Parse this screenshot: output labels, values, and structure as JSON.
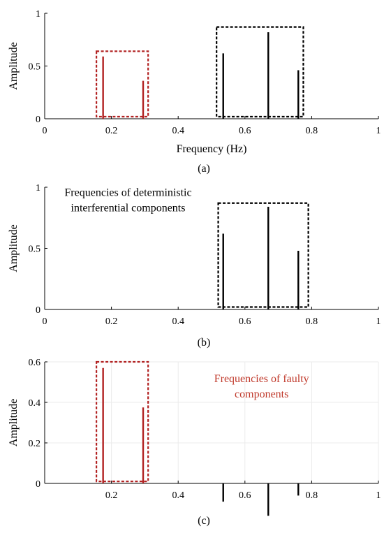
{
  "chart_data": [
    {
      "type": "stem",
      "panel_label": "(a)",
      "xlabel": "Frequency (Hz)",
      "ylabel": "Amplitude",
      "xlim": [
        0,
        1
      ],
      "ylim": [
        0,
        1
      ],
      "xticks": [
        0,
        0.2,
        0.4,
        0.6,
        0.8,
        1
      ],
      "xtick_labels": [
        "0",
        "0.2",
        "0.4",
        "0.6",
        "0.8",
        "1"
      ],
      "yticks": [
        0,
        0.5,
        1
      ],
      "ytick_labels": [
        "0",
        "0.5",
        "1"
      ],
      "grid": false,
      "stems": [
        {
          "x": 0.175,
          "y": 0.59,
          "color": "#b22222"
        },
        {
          "x": 0.295,
          "y": 0.36,
          "color": "#b22222"
        },
        {
          "x": 0.535,
          "y": 0.62,
          "color": "#000000"
        },
        {
          "x": 0.67,
          "y": 0.82,
          "color": "#000000"
        },
        {
          "x": 0.76,
          "y": 0.46,
          "color": "#000000"
        }
      ],
      "boxes": [
        {
          "x": [
            0.155,
            0.31
          ],
          "y": [
            0.02,
            0.64
          ],
          "color": "#b22222"
        },
        {
          "x": [
            0.515,
            0.775
          ],
          "y": [
            0.02,
            0.87
          ],
          "color": "#000000"
        }
      ],
      "annotations": []
    },
    {
      "type": "stem",
      "panel_label": "(b)",
      "xlabel": "",
      "ylabel": "Amplitude",
      "xlim": [
        0,
        1
      ],
      "ylim": [
        0,
        1
      ],
      "xticks": [
        0,
        0.2,
        0.4,
        0.6,
        0.8,
        1
      ],
      "xtick_labels": [
        "0",
        "0.2",
        "0.4",
        "0.6",
        "0.8",
        "1"
      ],
      "yticks": [
        0,
        0.5,
        1
      ],
      "ytick_labels": [
        "0",
        "0.5",
        "1"
      ],
      "grid": false,
      "stems": [
        {
          "x": 0.535,
          "y": 0.62,
          "color": "#000000"
        },
        {
          "x": 0.67,
          "y": 0.84,
          "color": "#000000"
        },
        {
          "x": 0.76,
          "y": 0.48,
          "color": "#000000"
        }
      ],
      "boxes": [
        {
          "x": [
            0.52,
            0.79
          ],
          "y": [
            0.02,
            0.87
          ],
          "color": "#000000"
        }
      ],
      "annotations": [
        {
          "lines": [
            "Frequencies of deterministic",
            "interferential components"
          ],
          "color": "#000000",
          "anchor_x": 0.25,
          "anchor_y": 0.93
        }
      ]
    },
    {
      "type": "stem",
      "panel_label": "(c)",
      "xlabel": "",
      "ylabel": "Amplitude",
      "xlim": [
        0,
        1
      ],
      "ylim": [
        0,
        0.6
      ],
      "xticks": [
        0.2,
        0.4,
        0.6,
        0.8,
        1
      ],
      "xtick_labels": [
        "0.2",
        "0.4",
        "0.6",
        "0.8",
        "1"
      ],
      "yticks": [
        0,
        0.2,
        0.4,
        0.6
      ],
      "ytick_labels": [
        "0",
        "0.2",
        "0.4",
        "0.6"
      ],
      "grid": true,
      "stems": [
        {
          "x": 0.175,
          "y": 0.57,
          "color": "#b22222"
        },
        {
          "x": 0.295,
          "y": 0.375,
          "color": "#b22222"
        },
        {
          "x": 0.535,
          "y": -0.09,
          "color": "#000000"
        },
        {
          "x": 0.67,
          "y": -0.16,
          "color": "#000000"
        },
        {
          "x": 0.76,
          "y": -0.06,
          "color": "#000000"
        }
      ],
      "boxes": [
        {
          "x": [
            0.155,
            0.31
          ],
          "y": [
            0.01,
            0.6
          ],
          "color": "#b22222"
        }
      ],
      "annotations": [
        {
          "lines": [
            "Frequencies of faulty",
            "components"
          ],
          "color": "#c0392b",
          "anchor_x": 0.65,
          "anchor_y": 0.5
        }
      ]
    }
  ]
}
